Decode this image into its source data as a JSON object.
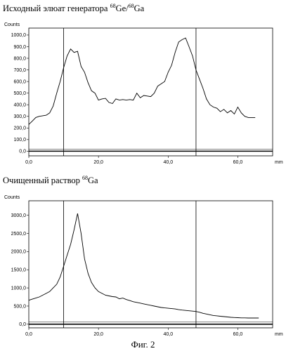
{
  "figure_caption": "Фиг. 2",
  "chart_data": [
    {
      "type": "line",
      "title_parts": {
        "text": "Исходный элюат генератора ",
        "iso1": "68",
        "el1": "Ge/",
        "iso2": "68",
        "el2": "Ga"
      },
      "ylabel": "Counts",
      "xunit": "mm",
      "xlim": [
        0,
        70
      ],
      "ylim": [
        -40,
        1060
      ],
      "xticks": [
        0,
        20,
        40,
        60
      ],
      "xtick_labels": [
        "0,0",
        "20,0",
        "40,0",
        "60,0"
      ],
      "yticks": [
        0,
        100,
        200,
        300,
        400,
        500,
        600,
        700,
        800,
        900,
        1000
      ],
      "ytick_labels": [
        "0,0",
        "100,0",
        "200,0",
        "300,0",
        "400,0",
        "500,0",
        "600,0",
        "700,0",
        "800,0",
        "900,0",
        "1000,0"
      ],
      "vlines": [
        10,
        48
      ],
      "x": [
        0,
        1,
        2,
        3,
        4,
        5,
        6,
        7,
        8,
        9,
        10,
        11,
        12,
        13,
        14,
        15,
        16,
        17,
        18,
        19,
        20,
        21,
        22,
        23,
        24,
        25,
        26,
        27,
        28,
        29,
        30,
        31,
        32,
        33,
        34,
        35,
        36,
        37,
        38,
        39,
        40,
        41,
        42,
        43,
        44,
        45,
        46,
        47,
        48,
        49,
        50,
        51,
        52,
        53,
        54,
        55,
        56,
        57,
        58,
        59,
        60,
        61,
        62,
        63,
        64,
        65
      ],
      "y": [
        230,
        260,
        290,
        300,
        305,
        310,
        330,
        390,
        500,
        600,
        720,
        820,
        880,
        850,
        860,
        730,
        680,
        590,
        520,
        500,
        440,
        450,
        455,
        420,
        410,
        450,
        440,
        445,
        440,
        445,
        440,
        500,
        460,
        480,
        475,
        470,
        500,
        560,
        580,
        600,
        680,
        740,
        850,
        940,
        960,
        975,
        900,
        820,
        700,
        620,
        540,
        450,
        400,
        380,
        370,
        340,
        360,
        330,
        350,
        320,
        380,
        330,
        300,
        290,
        290,
        290
      ]
    },
    {
      "type": "line",
      "title_parts": {
        "text": "Очищенный раствор ",
        "iso1": "68",
        "el1": "Ga",
        "iso2": "",
        "el2": ""
      },
      "ylabel": "Counts",
      "xunit": "mm",
      "xlim": [
        0,
        70
      ],
      "ylim": [
        -100,
        3400
      ],
      "xticks": [
        0,
        20,
        40,
        60
      ],
      "xtick_labels": [
        "0,0",
        "20,0",
        "40,0",
        "60,0"
      ],
      "yticks": [
        0,
        500,
        1000,
        1500,
        2000,
        2500,
        3000
      ],
      "ytick_labels": [
        "0,0",
        "500,0",
        "1000,0",
        "1500,0",
        "2000,0",
        "2500,0",
        "3000,0"
      ],
      "vlines": [
        10,
        48
      ],
      "x": [
        0,
        1,
        2,
        3,
        4,
        5,
        6,
        7,
        8,
        9,
        10,
        11,
        12,
        13,
        14,
        15,
        16,
        17,
        18,
        19,
        20,
        21,
        22,
        23,
        24,
        25,
        26,
        27,
        28,
        29,
        30,
        31,
        32,
        33,
        34,
        35,
        36,
        37,
        38,
        39,
        40,
        41,
        42,
        43,
        44,
        45,
        46,
        47,
        48,
        49,
        50,
        51,
        52,
        53,
        54,
        55,
        56,
        57,
        58,
        59,
        60,
        61,
        62,
        63,
        64,
        65,
        66
      ],
      "y": [
        660,
        690,
        720,
        750,
        800,
        850,
        900,
        1000,
        1100,
        1300,
        1600,
        1900,
        2200,
        2600,
        3050,
        2500,
        1800,
        1400,
        1150,
        1000,
        900,
        850,
        800,
        780,
        760,
        750,
        700,
        720,
        680,
        650,
        620,
        600,
        580,
        560,
        540,
        520,
        500,
        480,
        460,
        450,
        440,
        430,
        420,
        400,
        390,
        380,
        370,
        360,
        350,
        330,
        300,
        280,
        260,
        240,
        230,
        220,
        210,
        200,
        190,
        185,
        180,
        175,
        175,
        170,
        170,
        170,
        170
      ]
    }
  ]
}
